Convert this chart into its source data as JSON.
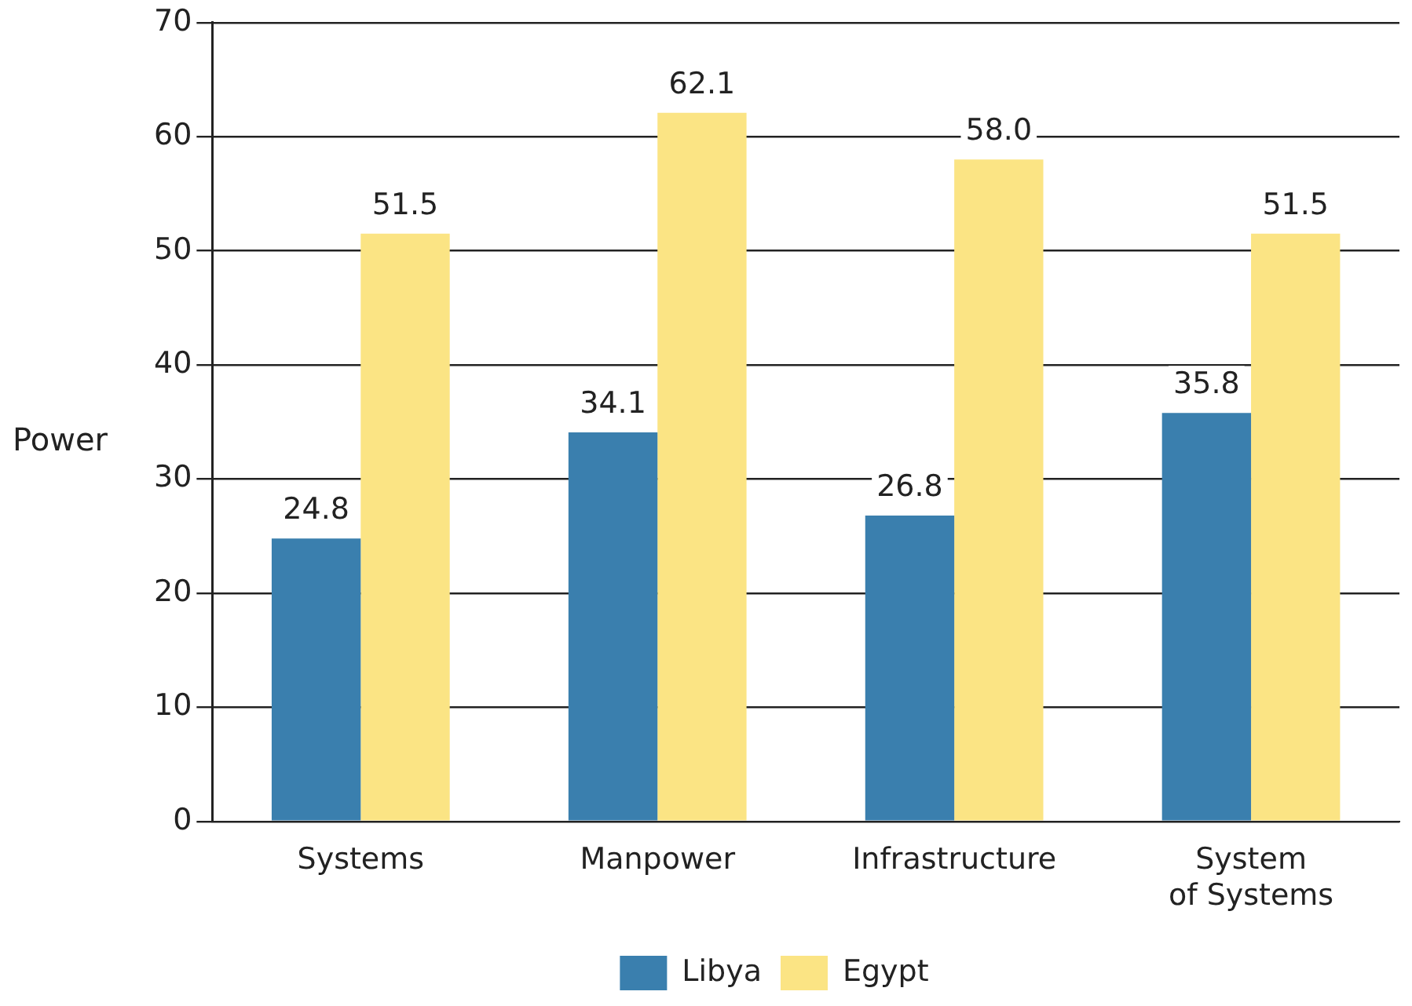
{
  "chart_data": {
    "type": "bar",
    "ylabel": "Power",
    "categories": [
      "Systems",
      "Manpower",
      "Infrastructure",
      "System of Systems"
    ],
    "series": [
      {
        "name": "Libya",
        "color": "#3a7fae",
        "values": [
          24.8,
          34.1,
          26.8,
          35.8
        ],
        "value_labels": [
          "24.8",
          "34.1",
          "26.8",
          "35.8"
        ]
      },
      {
        "name": "Egypt",
        "color": "#fbe484",
        "values": [
          51.5,
          62.1,
          58.0,
          51.5
        ],
        "value_labels": [
          "51.5",
          "62.1",
          "58.0",
          "51.5"
        ]
      }
    ],
    "ylim": [
      0,
      70
    ],
    "yticks": [
      0,
      10,
      20,
      30,
      40,
      50,
      60,
      70
    ],
    "grid": "y",
    "legend": "bottom"
  }
}
